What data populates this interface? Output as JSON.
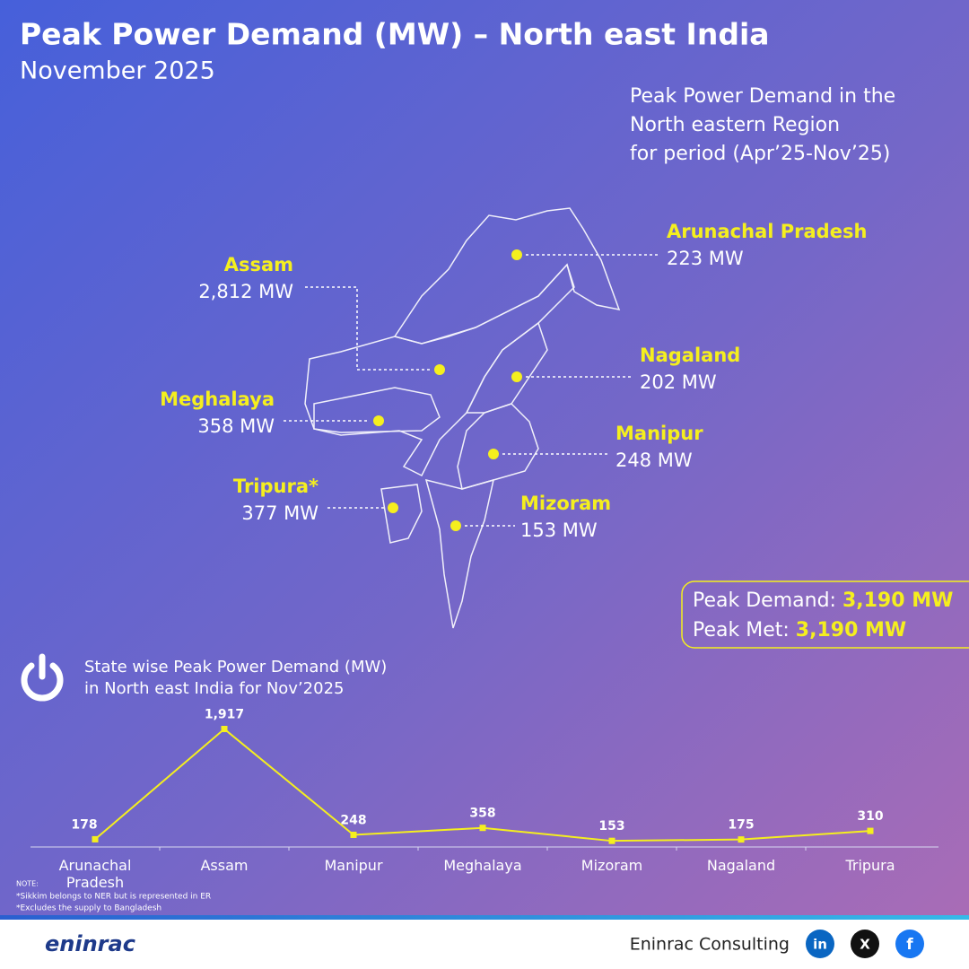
{
  "header": {
    "title": "Peak Power Demand (MW) – North east India",
    "subtitle": "November 2025"
  },
  "map": {
    "title_lines": [
      "Peak Power Demand in the",
      "North eastern Region",
      "for period (Apr’25-Nov’25)"
    ],
    "states": [
      {
        "name": "Arunachal Pradesh",
        "value": "223 MW"
      },
      {
        "name": "Assam",
        "value": "2,812 MW"
      },
      {
        "name": "Nagaland",
        "value": "202 MW"
      },
      {
        "name": "Meghalaya",
        "value": "358 MW"
      },
      {
        "name": "Manipur",
        "value": "248 MW"
      },
      {
        "name": "Tripura*",
        "value": "377 MW"
      },
      {
        "name": "Mizoram",
        "value": "153 MW"
      }
    ]
  },
  "summary": {
    "demand_label": "Peak Demand:",
    "demand_value": "3,190 MW",
    "met_label": "Peak Met:",
    "met_value": "3,190 MW"
  },
  "chart_data": {
    "type": "line",
    "title": [
      "State wise Peak Power Demand (MW)",
      "in North east India for Nov’2025"
    ],
    "categories": [
      "Arunachal Pradesh",
      "Assam",
      "Manipur",
      "Meghalaya",
      "Mizoram",
      "Nagaland",
      "Tripura"
    ],
    "values": [
      178,
      1917,
      248,
      358,
      153,
      175,
      310
    ],
    "value_labels": [
      "178",
      "1,917",
      "248",
      "358",
      "153",
      "175",
      "310"
    ],
    "color": "#f5ef1e"
  },
  "note": {
    "label": "NOTE:",
    "lines": [
      "*Sikkim belongs to NER but is represented in ER",
      "*Excludes the supply to Bangladesh"
    ]
  },
  "footer": {
    "logo": "eninrac",
    "company": "Eninrac Consulting",
    "social": [
      "in",
      "X",
      "f"
    ]
  }
}
